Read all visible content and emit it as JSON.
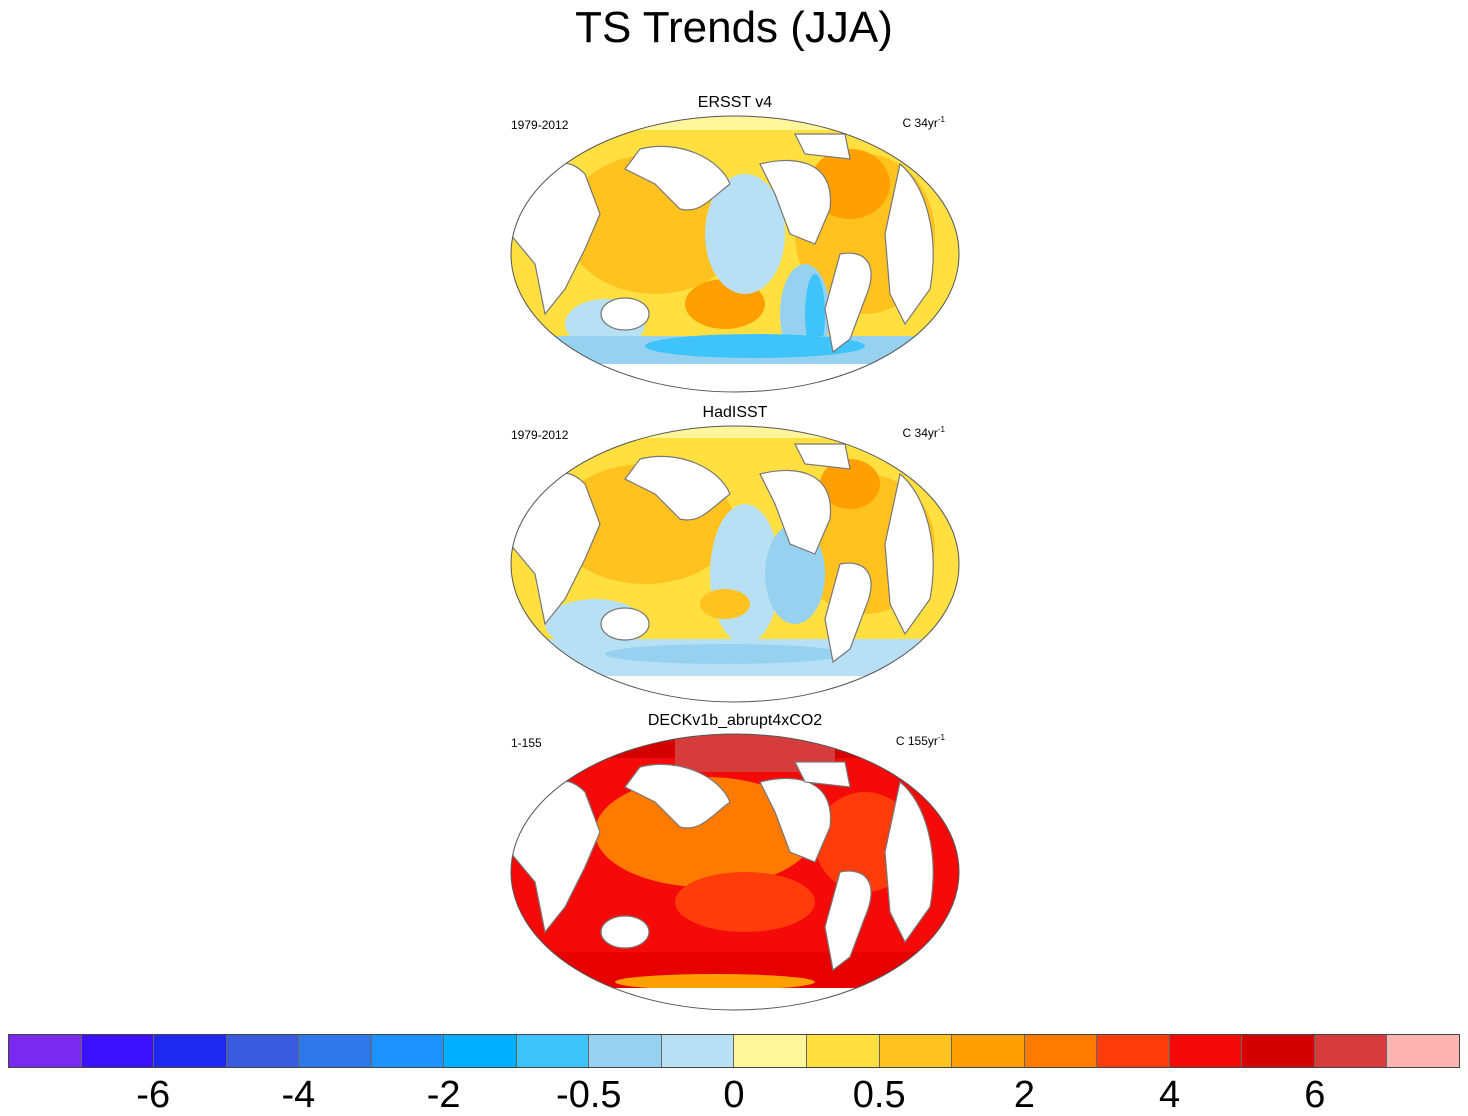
{
  "figure": {
    "title": "TS Trends (JJA)"
  },
  "panels": [
    {
      "title": "ERSST v4",
      "period": "1979-2012",
      "units_prefix": "C 34yr",
      "units_exp": "-1"
    },
    {
      "title": "HadISST",
      "period": "1979-2012",
      "units_prefix": "C 34yr",
      "units_exp": "-1"
    },
    {
      "title": "DECKv1b_abrupt4xCO2",
      "period": "1-155",
      "units_prefix": "C 155yr",
      "units_exp": "-1"
    }
  ],
  "colorbar": {
    "colors": [
      "#7a2af0",
      "#3a10ff",
      "#1e28f0",
      "#3a5ae0",
      "#2f78ec",
      "#1e92ff",
      "#00b0ff",
      "#3ec4fa",
      "#96d2f0",
      "#b8e0f5",
      "#fff59a",
      "#ffe040",
      "#ffc21e",
      "#ffa000",
      "#ff7a00",
      "#ff3c0a",
      "#f50a0a",
      "#d40000",
      "#d63c3c",
      "#ffb4b4"
    ],
    "tick_labels": [
      "-6",
      "-4",
      "-2",
      "-0.5",
      "0",
      "0.5",
      "2",
      "4",
      "6"
    ]
  },
  "colors": {
    "land": "#ffffff",
    "coast": "#777777",
    "border": "#555555"
  }
}
